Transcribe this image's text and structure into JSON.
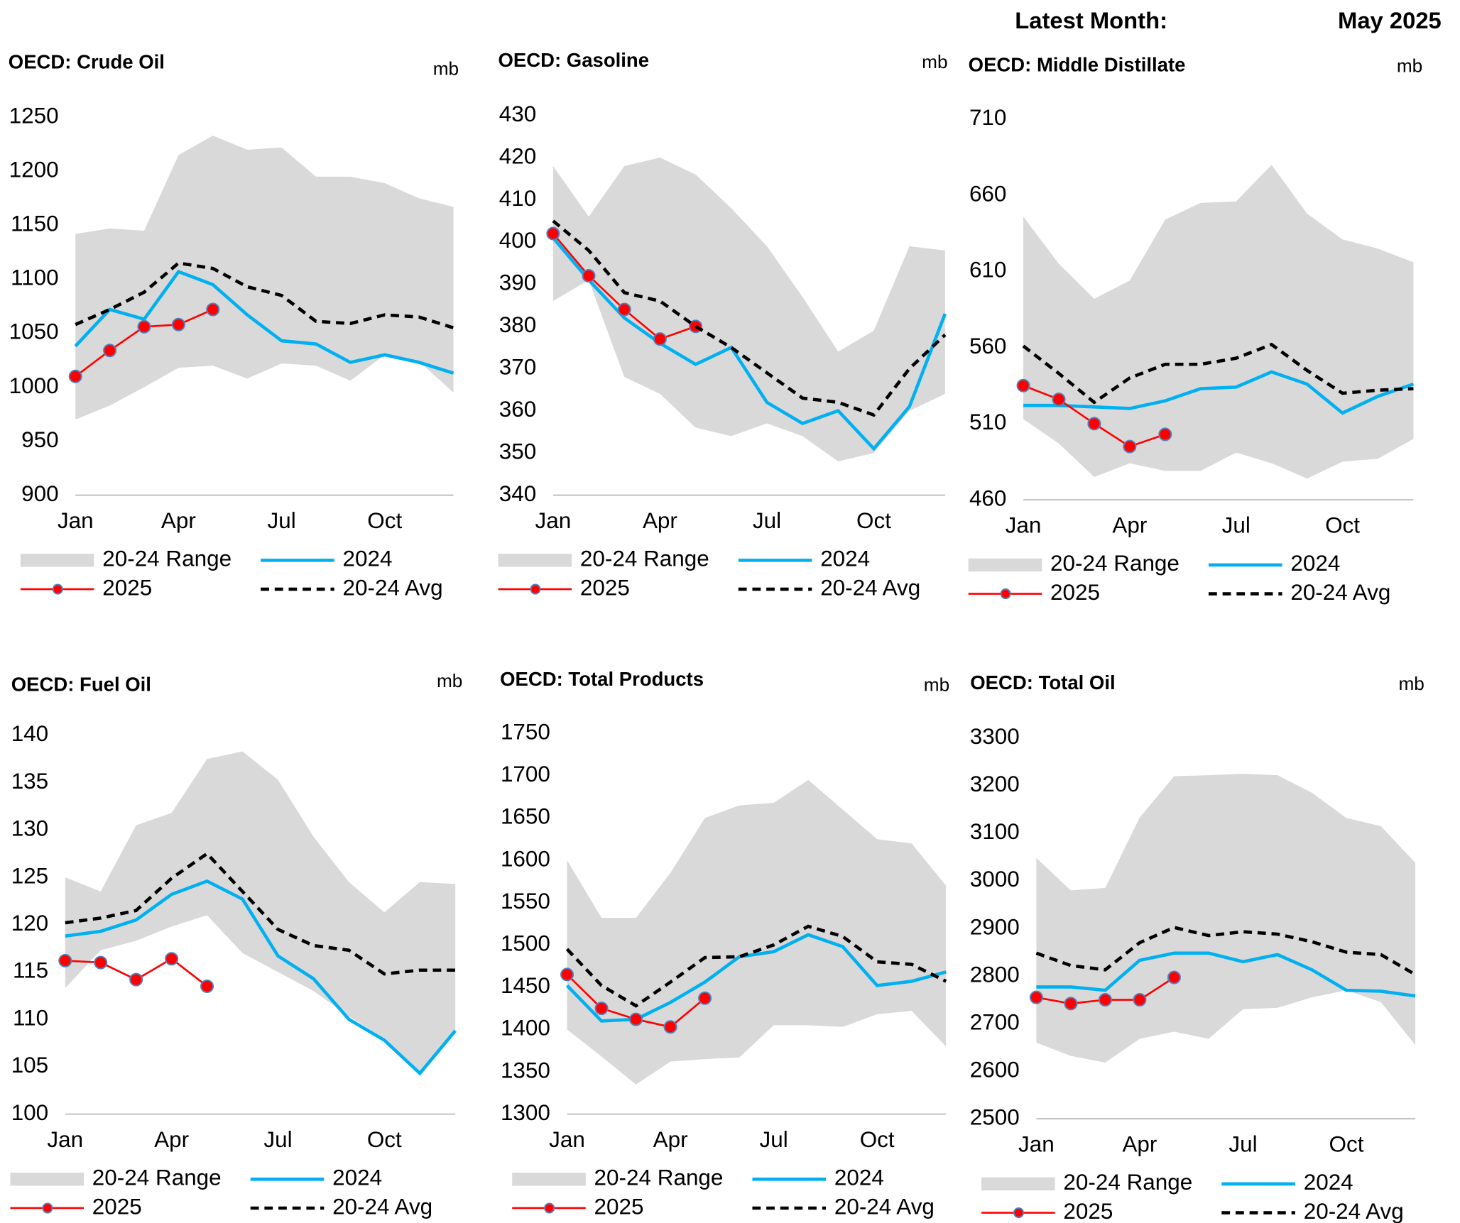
{
  "header": {
    "label": "Latest Month:",
    "value": "May 2025"
  },
  "chart_data": [
    {
      "type": "line",
      "title": "OECD: Crude Oil",
      "unit": "mb",
      "categories": [
        "Jan",
        null,
        null,
        "Apr",
        null,
        null,
        "Jul",
        null,
        null,
        "Oct",
        null,
        null
      ],
      "ylim": [
        900,
        1250
      ],
      "yticks": [
        900,
        950,
        1000,
        1050,
        1100,
        1150,
        1200,
        1250
      ],
      "series": [
        {
          "name": "20-24 Range",
          "color": "#d9d9d9",
          "low": [
            970,
            983,
            1000,
            1018,
            1020,
            1008,
            1022,
            1020,
            1006,
            1030,
            1024,
            995
          ],
          "high": [
            1142,
            1147,
            1145,
            1215,
            1233,
            1220,
            1222,
            1195,
            1195,
            1189,
            1175,
            1167
          ]
        },
        {
          "name": "2024",
          "color": "#00b0f0",
          "values": [
            1038,
            1072,
            1063,
            1107,
            1095,
            1067,
            1043,
            1040,
            1023,
            1030,
            1023,
            1013
          ]
        },
        {
          "name": "2025",
          "color": "#ff0000",
          "values": [
            1010,
            1034,
            1056,
            1058,
            1072,
            null,
            null,
            null,
            null,
            null,
            null,
            null
          ]
        },
        {
          "name": "20-24 Avg",
          "color": "#000000",
          "values": [
            1058,
            1072,
            1088,
            1115,
            1110,
            1093,
            1085,
            1061,
            1059,
            1067,
            1065,
            1055
          ]
        }
      ]
    },
    {
      "type": "line",
      "title": "OECD: Gasoline",
      "unit": "mb",
      "categories": [
        "Jan",
        null,
        null,
        "Apr",
        null,
        null,
        "Jul",
        null,
        null,
        "Oct",
        null,
        null
      ],
      "ylim": [
        340,
        430
      ],
      "yticks": [
        340,
        350,
        360,
        370,
        380,
        390,
        400,
        410,
        420,
        430
      ],
      "series": [
        {
          "name": "20-24 Range",
          "color": "#d9d9d9",
          "low": [
            386,
            391,
            368,
            364,
            356,
            354,
            357,
            354,
            348,
            350,
            360,
            364
          ],
          "high": [
            418,
            406,
            418,
            420,
            416,
            408,
            399,
            387,
            374,
            379,
            399,
            398
          ]
        },
        {
          "name": "2024",
          "color": "#00b0f0",
          "values": [
            401,
            391,
            382,
            376,
            371,
            375,
            362,
            357,
            360,
            351,
            361,
            383
          ]
        },
        {
          "name": "2025",
          "color": "#ff0000",
          "values": [
            402,
            392,
            384,
            377,
            380,
            null,
            null,
            null,
            null,
            null,
            null,
            null
          ]
        },
        {
          "name": "20-24 Avg",
          "color": "#000000",
          "values": [
            405,
            398,
            388,
            386,
            380,
            375,
            369,
            363,
            362,
            359,
            370,
            378
          ]
        }
      ]
    },
    {
      "type": "line",
      "title": "OECD: Middle Distillate",
      "unit": "mb",
      "categories": [
        "Jan",
        null,
        null,
        "Apr",
        null,
        null,
        "Jul",
        null,
        null,
        "Oct",
        null,
        null
      ],
      "ylim": [
        460,
        710
      ],
      "yticks": [
        460,
        510,
        560,
        610,
        660,
        710
      ],
      "series": [
        {
          "name": "20-24 Range",
          "color": "#d9d9d9",
          "low": [
            513,
            497,
            475,
            484,
            479,
            479,
            491,
            484,
            474,
            485,
            487,
            500
          ],
          "high": [
            646,
            615,
            592,
            604,
            644,
            655,
            656,
            680,
            648,
            631,
            625,
            616
          ]
        },
        {
          "name": "2024",
          "color": "#00b0f0",
          "values": [
            522,
            522,
            521,
            520,
            525,
            533,
            534,
            544,
            536,
            517,
            528,
            536
          ]
        },
        {
          "name": "2025",
          "color": "#ff0000",
          "values": [
            535,
            526,
            510,
            495,
            503,
            null,
            null,
            null,
            null,
            null,
            null,
            null
          ]
        },
        {
          "name": "20-24 Avg",
          "color": "#000000",
          "values": [
            561,
            543,
            524,
            540,
            549,
            549,
            553,
            562,
            545,
            530,
            532,
            533
          ]
        }
      ]
    },
    {
      "type": "line",
      "title": "OECD: Fuel Oil",
      "unit": "mb",
      "categories": [
        "Jan",
        null,
        null,
        "Apr",
        null,
        null,
        "Jul",
        null,
        null,
        "Oct",
        null,
        null
      ],
      "ylim": [
        100,
        140
      ],
      "yticks": [
        100,
        105,
        110,
        115,
        120,
        125,
        130,
        135,
        140
      ],
      "series": [
        {
          "name": "20-24 Range",
          "color": "#d9d9d9",
          "low": [
            113.3,
            117.3,
            118.3,
            119.8,
            121,
            117,
            115,
            113,
            110.3,
            108,
            104.5,
            108.5
          ],
          "high": [
            125,
            123.5,
            130.5,
            131.8,
            137.5,
            138.3,
            135.3,
            129.3,
            124.5,
            121.3,
            124.5,
            124.3
          ]
        },
        {
          "name": "2024",
          "color": "#00b0f0",
          "values": [
            118.8,
            119.3,
            120.5,
            123.2,
            124.6,
            122.7,
            116.7,
            114.3,
            110,
            107.8,
            104.3,
            108.8
          ]
        },
        {
          "name": "2025",
          "color": "#ff0000",
          "values": [
            116.2,
            116,
            114.2,
            116.4,
            113.5,
            null,
            null,
            null,
            null,
            null,
            null,
            null
          ]
        },
        {
          "name": "20-24 Avg",
          "color": "#000000",
          "values": [
            120.2,
            120.7,
            121.5,
            124.9,
            127.5,
            123.5,
            119.5,
            117.8,
            117.3,
            114.8,
            115.2,
            115.2
          ]
        }
      ]
    },
    {
      "type": "line",
      "title": "OECD: Total Products",
      "unit": "mb",
      "categories": [
        "Jan",
        null,
        null,
        "Apr",
        null,
        null,
        "Jul",
        null,
        null,
        "Oct",
        null,
        null
      ],
      "ylim": [
        1300,
        1750
      ],
      "yticks": [
        1300,
        1350,
        1400,
        1450,
        1500,
        1550,
        1600,
        1650,
        1700,
        1750
      ],
      "series": [
        {
          "name": "20-24 Range",
          "color": "#d9d9d9",
          "low": [
            1400,
            1368,
            1335,
            1362,
            1365,
            1367,
            1405,
            1405,
            1403,
            1418,
            1422,
            1380
          ],
          "high": [
            1600,
            1532,
            1532,
            1585,
            1650,
            1665,
            1668,
            1695,
            1660,
            1625,
            1620,
            1570
          ]
        },
        {
          "name": "2024",
          "color": "#00b0f0",
          "values": [
            1452,
            1410,
            1412,
            1432,
            1456,
            1486,
            1492,
            1512,
            1498,
            1452,
            1457,
            1468
          ]
        },
        {
          "name": "2025",
          "color": "#ff0000",
          "values": [
            1465,
            1425,
            1412,
            1403,
            1437,
            null,
            null,
            null,
            null,
            null,
            null,
            null
          ]
        },
        {
          "name": "20-24 Avg",
          "color": "#000000",
          "values": [
            1495,
            1452,
            1428,
            1456,
            1485,
            1486,
            1500,
            1522,
            1510,
            1480,
            1477,
            1457
          ]
        }
      ]
    },
    {
      "type": "line",
      "title": "OECD: Total Oil",
      "unit": "mb",
      "categories": [
        "Jan",
        null,
        null,
        "Apr",
        null,
        null,
        "Jul",
        null,
        null,
        "Oct",
        null,
        null
      ],
      "ylim": [
        2500,
        3300
      ],
      "yticks": [
        2500,
        2600,
        2700,
        2800,
        2900,
        3000,
        3100,
        3200,
        3300
      ],
      "series": [
        {
          "name": "20-24 Range",
          "color": "#d9d9d9",
          "low": [
            2660,
            2632,
            2618,
            2668,
            2683,
            2668,
            2730,
            2733,
            2755,
            2770,
            2745,
            2655
          ],
          "high": [
            3048,
            2980,
            2985,
            3133,
            3220,
            3222,
            3225,
            3222,
            3185,
            3132,
            3115,
            3038
          ]
        },
        {
          "name": "2024",
          "color": "#00b0f0",
          "values": [
            2777,
            2777,
            2770,
            2833,
            2848,
            2848,
            2830,
            2845,
            2813,
            2770,
            2768,
            2758
          ]
        },
        {
          "name": "2025",
          "color": "#ff0000",
          "values": [
            2755,
            2742,
            2750,
            2750,
            2797,
            null,
            null,
            null,
            null,
            null,
            null,
            null
          ]
        },
        {
          "name": "20-24 Avg",
          "color": "#000000",
          "values": [
            2848,
            2822,
            2813,
            2870,
            2902,
            2885,
            2893,
            2888,
            2872,
            2850,
            2845,
            2803
          ]
        }
      ]
    }
  ]
}
